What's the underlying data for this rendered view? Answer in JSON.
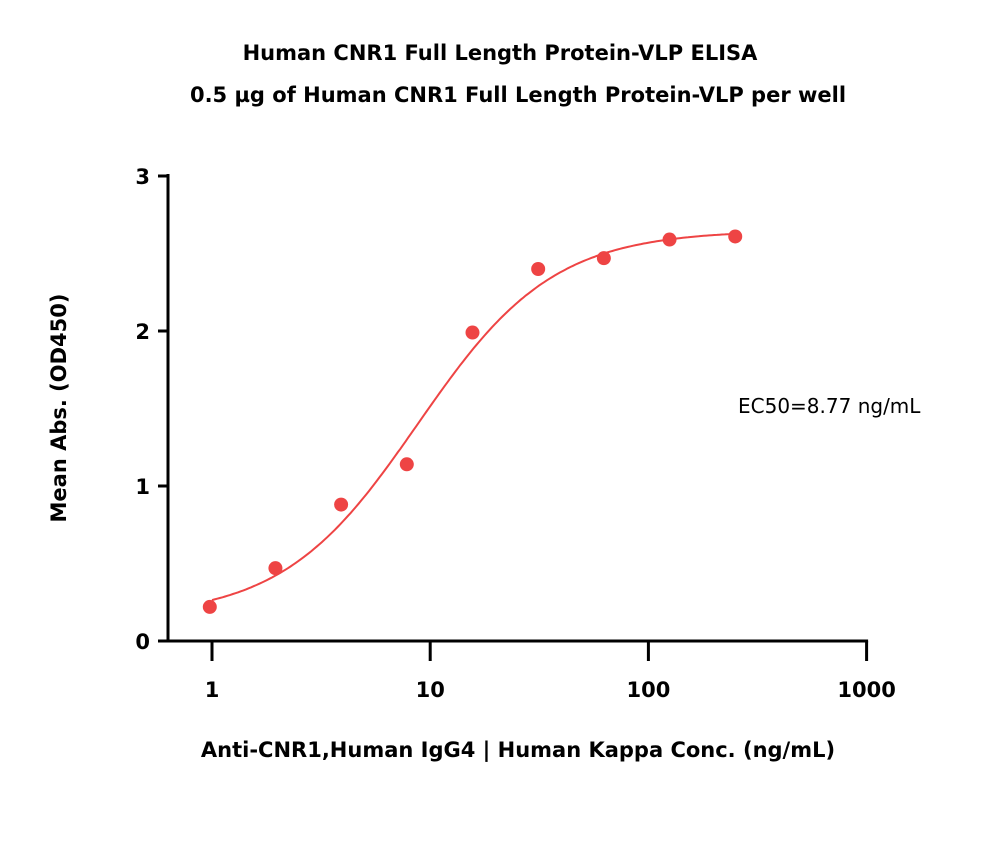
{
  "chart_data": {
    "type": "scatter",
    "title": "Human CNR1 Full Length Protein-VLP ELISA",
    "subtitle": "0.5 µg of Human CNR1 Full Length Protein-VLP per well",
    "xlabel": "Anti-CNR1,Human IgG4 | Human Kappa Conc. (ng/mL)",
    "ylabel": "Mean Abs. (OD450)",
    "xscale": "log",
    "xlim": [
      1,
      1000
    ],
    "ylim": [
      0,
      3
    ],
    "xticks": [
      "1",
      "10",
      "100",
      "1000"
    ],
    "xtick_values": [
      1,
      10,
      100,
      1000
    ],
    "yticks": [
      "0",
      "1",
      "2",
      "3"
    ],
    "ytick_values": [
      0,
      1,
      2,
      3
    ],
    "grid": false,
    "annotation": "EC50=8.77 ng/mL",
    "color": "#ee4444",
    "points": {
      "x": [
        0.977,
        1.953,
        3.906,
        7.8125,
        15.625,
        31.25,
        62.5,
        125,
        250
      ],
      "y": [
        0.22,
        0.47,
        0.88,
        1.14,
        1.99,
        2.4,
        2.47,
        2.59,
        2.61
      ]
    },
    "fit": {
      "model": "4PL",
      "bottom": 0.15,
      "top": 2.65,
      "ec50": 8.77,
      "hill": 1.4,
      "x_range": [
        1,
        250
      ]
    }
  }
}
